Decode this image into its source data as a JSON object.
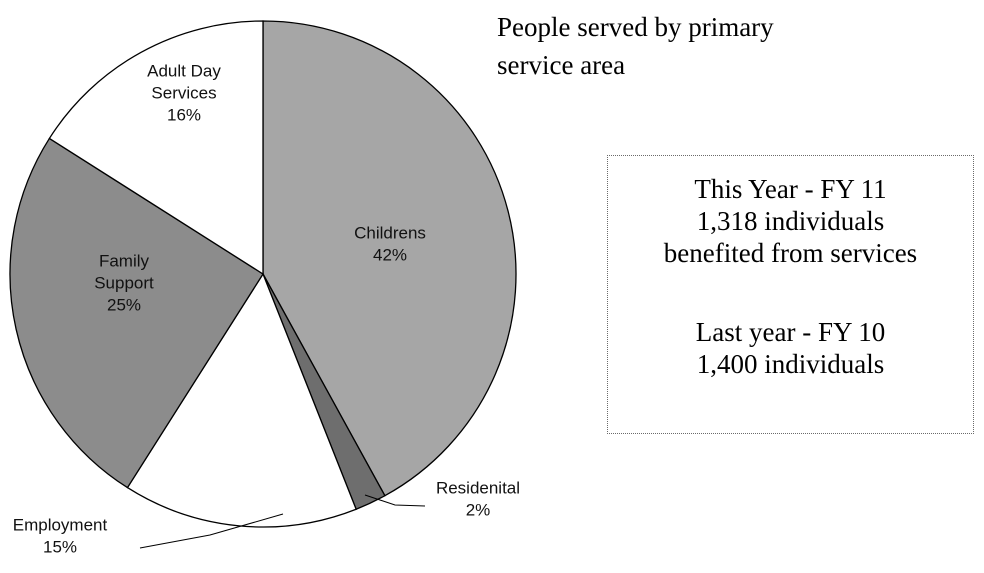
{
  "title": {
    "line1": "People served by primary",
    "line2": "service area"
  },
  "info_box": {
    "this_year": [
      "This Year - FY 11",
      "1,318 individuals",
      "benefited from services"
    ],
    "last_year": [
      "Last year - FY 10",
      "1,400 individuals"
    ]
  },
  "chart_data": {
    "type": "pie",
    "slices": [
      {
        "label": "Childrens",
        "value": 42,
        "color": "#a6a6a6",
        "label_lines": [
          "Childrens",
          "42%"
        ]
      },
      {
        "label": "Residenital",
        "value": 2,
        "color": "#6e6e6e",
        "label_lines": [
          "Residenital",
          "2%"
        ]
      },
      {
        "label": "Employment",
        "value": 15,
        "color": "#ffffff",
        "label_lines": [
          "Employment",
          "15%"
        ]
      },
      {
        "label": "Family Support",
        "value": 25,
        "color": "#8c8c8c",
        "label_lines": [
          "Family",
          "Support",
          "25%"
        ]
      },
      {
        "label": "Adult Day Services",
        "value": 16,
        "color": "#ffffff",
        "label_lines": [
          "Adult Day",
          "Services",
          "16%"
        ]
      }
    ],
    "start_angle_deg": 0,
    "direction": "clockwise"
  }
}
